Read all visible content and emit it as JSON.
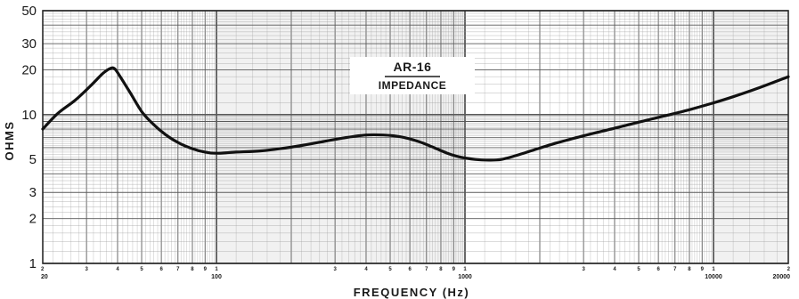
{
  "chart_data": {
    "type": "line",
    "title": "AR-16",
    "subtitle": "IMPEDANCE",
    "xlabel": "FREQUENCY (Hz)",
    "ylabel": "OHMS",
    "xscale": "log",
    "yscale": "log",
    "xlim": [
      20,
      20000
    ],
    "ylim": [
      1,
      50
    ],
    "grid": true,
    "legend": "none",
    "y_ticks": [
      1,
      2,
      3,
      5,
      10,
      20,
      30,
      50
    ],
    "y_tick_labels": [
      "1",
      "2",
      "3",
      "5",
      "10",
      "20",
      "30",
      "50"
    ],
    "x_major_ticks": [
      20,
      100,
      1000,
      10000,
      20000
    ],
    "x_major_tick_labels": [
      "2\n20",
      "1\n100",
      "1\n1000",
      "1\n10000",
      "2\n20000"
    ],
    "x_minor_tick_labels": [
      "3",
      "4",
      "5",
      "6",
      "7",
      "8",
      "9"
    ],
    "series": [
      {
        "x": [
          20,
          23,
          27,
          31,
          35,
          37.5,
          39,
          41,
          45,
          50,
          55,
          62,
          70,
          80,
          90,
          100,
          120,
          150,
          180,
          220,
          270,
          330,
          400,
          470,
          550,
          650,
          750,
          850,
          950,
          1100,
          1250,
          1400,
          1600,
          1900,
          2300,
          2800,
          3400,
          4000,
          5000,
          6500,
          8000,
          10000,
          12000,
          15000,
          20000
        ],
        "y": [
          8.0,
          10.2,
          12.5,
          15.5,
          19.0,
          20.5,
          20.3,
          18.0,
          14.0,
          10.5,
          8.8,
          7.4,
          6.5,
          5.9,
          5.6,
          5.5,
          5.6,
          5.7,
          5.9,
          6.2,
          6.6,
          7.0,
          7.3,
          7.3,
          7.1,
          6.6,
          6.0,
          5.5,
          5.2,
          5.0,
          4.95,
          5.0,
          5.3,
          5.8,
          6.4,
          7.0,
          7.6,
          8.1,
          8.9,
          9.9,
          10.8,
          12.0,
          13.2,
          15.0,
          18.0
        ]
      }
    ],
    "colors": {
      "grid": "#9a9a9a",
      "grid_major": "#5a5a5a",
      "curve": "#111111",
      "paper": "#ffffff"
    }
  }
}
